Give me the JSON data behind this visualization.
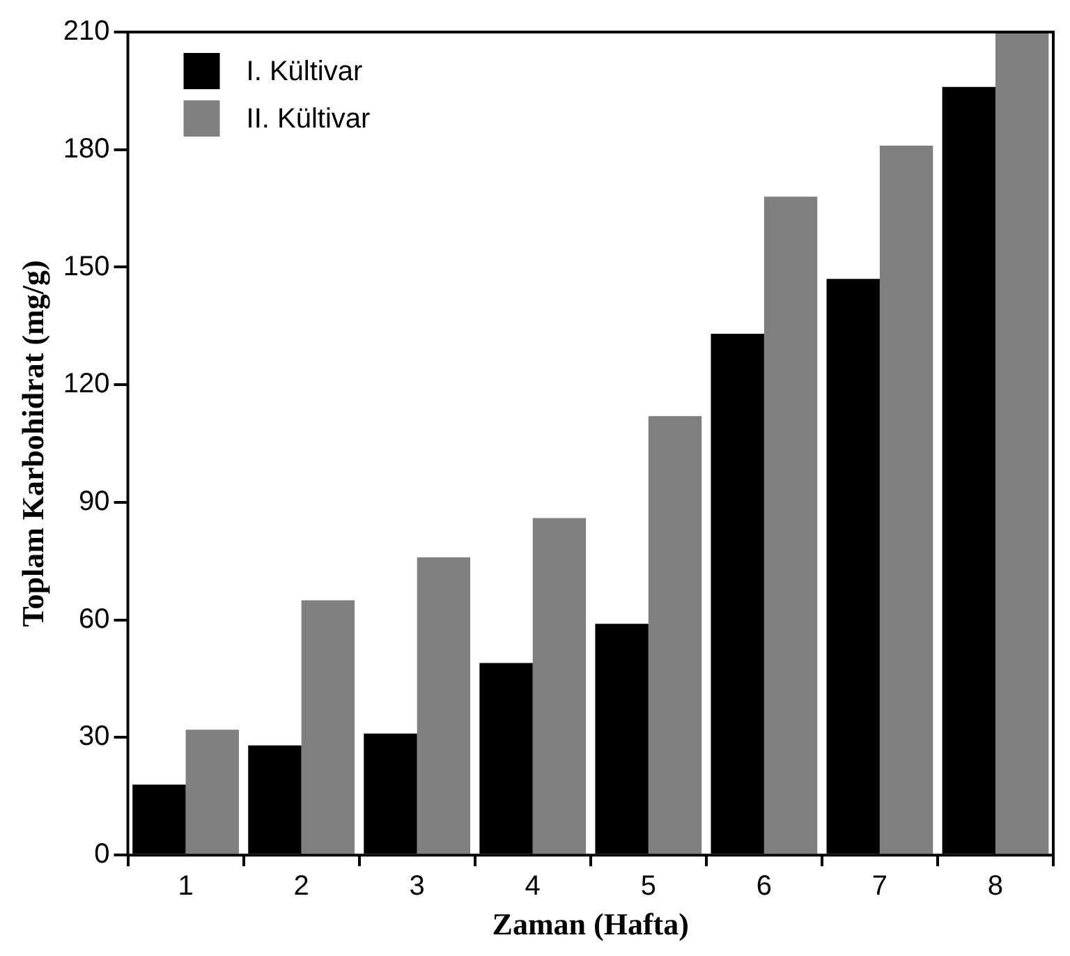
{
  "chart_data": {
    "type": "bar",
    "xlabel": "Zaman (Hafta)",
    "ylabel": "Toplam Karbohidrat (mg/g)",
    "categories": [
      "1",
      "2",
      "3",
      "4",
      "5",
      "6",
      "7",
      "8"
    ],
    "series": [
      {
        "name": "I. Kültivar",
        "color": "#000000",
        "values": [
          18,
          28,
          31,
          49,
          59,
          133,
          147,
          196
        ]
      },
      {
        "name": "II. Kültivar",
        "color": "#7f7f7f",
        "values": [
          32,
          65,
          76,
          86,
          112,
          168,
          181,
          210
        ]
      }
    ],
    "ylim": [
      0,
      210
    ],
    "yticks": [
      0,
      30,
      60,
      90,
      120,
      150,
      180,
      210
    ],
    "grid": false,
    "legend": "top left"
  }
}
